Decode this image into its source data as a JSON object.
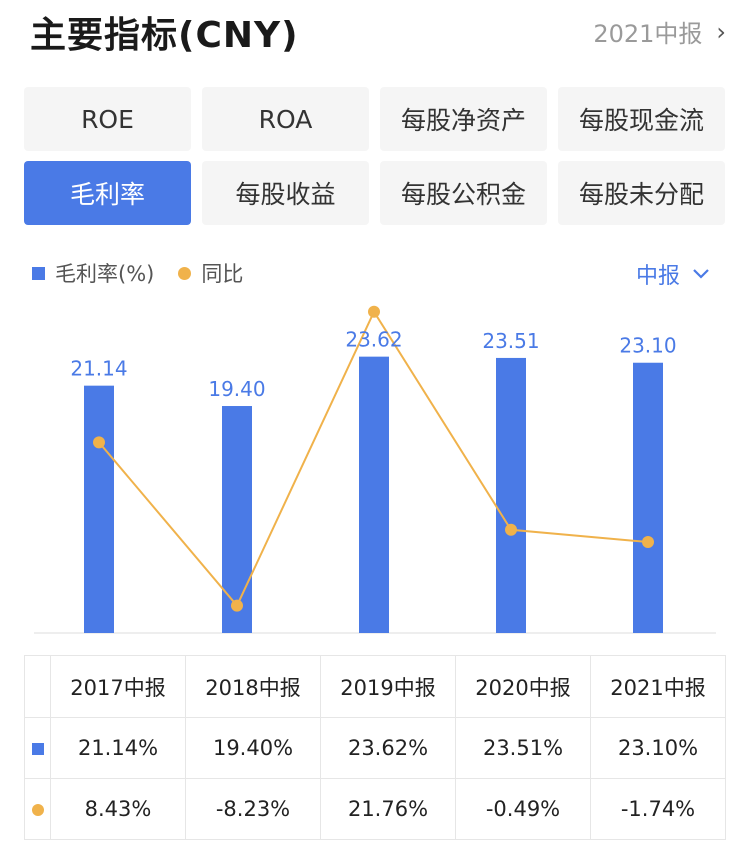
{
  "header": {
    "title": "主要指标(CNY)",
    "period": "2021中报",
    "chevron": "›"
  },
  "tabs": [
    {
      "label": "ROE",
      "active": false
    },
    {
      "label": "ROA",
      "active": false
    },
    {
      "label": "每股净资产",
      "active": false
    },
    {
      "label": "每股现金流",
      "active": false
    },
    {
      "label": "毛利率",
      "active": true
    },
    {
      "label": "每股收益",
      "active": false
    },
    {
      "label": "每股公积金",
      "active": false
    },
    {
      "label": "每股未分配",
      "active": false
    }
  ],
  "legend": {
    "bar_label": "毛利率(%)",
    "dot_label": "同比"
  },
  "period_select": {
    "label": "中报",
    "icon": "chevron-down"
  },
  "colors": {
    "accent": "#4a7ae6",
    "line": "#f0b24b",
    "positive": "#d9534f",
    "negative": "#3aa56a"
  },
  "chart_data": {
    "type": "bar",
    "categories": [
      "2017中报",
      "2018中报",
      "2019中报",
      "2020中报",
      "2021中报"
    ],
    "series": [
      {
        "name": "毛利率(%)",
        "type": "bar",
        "values": [
          21.14,
          19.4,
          23.62,
          23.51,
          23.1
        ],
        "labels": [
          "21.14",
          "19.40",
          "23.62",
          "23.51",
          "23.10"
        ]
      },
      {
        "name": "同比",
        "type": "line",
        "values": [
          8.43,
          -8.23,
          21.76,
          -0.49,
          -1.74
        ]
      }
    ],
    "legend_position": "top-left"
  },
  "table": {
    "headers": [
      "",
      "2017中报",
      "2018中报",
      "2019中报",
      "2020中报",
      "2021中报"
    ],
    "rows": [
      {
        "marker": "bar",
        "cells": [
          "21.14%",
          "19.40%",
          "23.62%",
          "23.51%",
          "23.10%"
        ]
      },
      {
        "marker": "dot",
        "cells": [
          "8.43%",
          "-8.23%",
          "21.76%",
          "-0.49%",
          "-1.74%"
        ]
      }
    ]
  }
}
